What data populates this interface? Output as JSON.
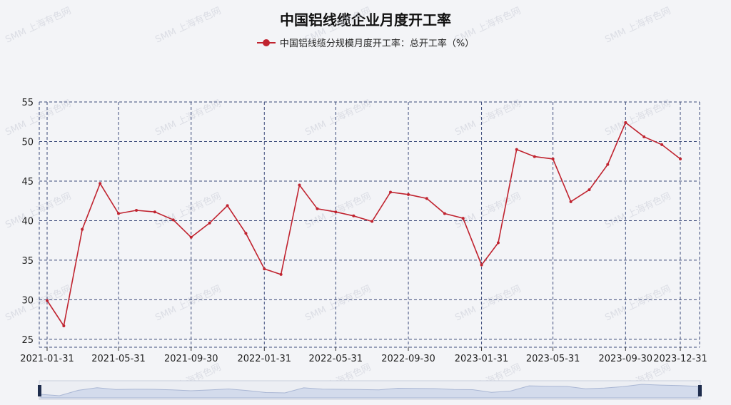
{
  "chart_data": {
    "type": "line",
    "title": "中国铝线缆企业月度开工率",
    "xlabel": "",
    "ylabel": "",
    "ylim": [
      24,
      55
    ],
    "yticks": [
      25,
      30,
      35,
      40,
      45,
      50,
      55
    ],
    "xtick_labels": [
      "2021-01-31",
      "2021-05-31",
      "2021-09-30",
      "2022-01-31",
      "2022-05-31",
      "2022-09-30",
      "2023-01-31",
      "2023-05-31",
      "2023-09-30",
      "2023-12-31"
    ],
    "grid": true,
    "legend_position": "top-center",
    "x": [
      "2021-01-31",
      "2021-02-28",
      "2021-03-31",
      "2021-04-30",
      "2021-05-31",
      "2021-06-30",
      "2021-07-31",
      "2021-08-31",
      "2021-09-30",
      "2021-10-31",
      "2021-11-30",
      "2021-12-31",
      "2022-01-31",
      "2022-02-28",
      "2022-03-31",
      "2022-04-30",
      "2022-05-31",
      "2022-06-30",
      "2022-07-31",
      "2022-08-31",
      "2022-09-30",
      "2022-10-31",
      "2022-11-30",
      "2022-12-31",
      "2023-01-31",
      "2023-02-28",
      "2023-03-31",
      "2023-04-30",
      "2023-05-31",
      "2023-06-30",
      "2023-07-31",
      "2023-08-31",
      "2023-09-30",
      "2023-10-31",
      "2023-11-30",
      "2023-12-31"
    ],
    "series": [
      {
        "name": "中国铝线缆分规模月度开工率：总开工率（%）",
        "color": "#c0232f",
        "values": [
          29.9,
          26.7,
          38.9,
          44.7,
          40.9,
          41.3,
          41.1,
          40.1,
          37.9,
          39.7,
          41.9,
          38.4,
          33.9,
          33.2,
          44.5,
          41.5,
          41.1,
          40.6,
          39.9,
          43.6,
          43.3,
          42.8,
          40.9,
          40.3,
          34.4,
          37.2,
          49.0,
          48.1,
          47.8,
          42.4,
          43.9,
          47.1,
          52.4,
          50.6,
          49.6,
          47.8
        ]
      }
    ]
  },
  "watermark_text": "SMM 上海有色网"
}
